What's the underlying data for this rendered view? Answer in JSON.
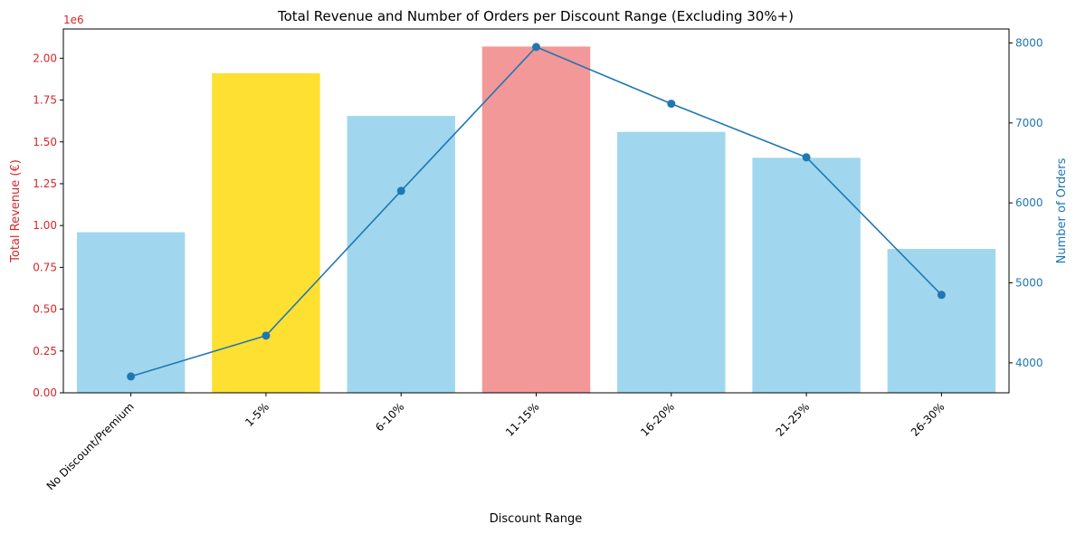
{
  "chart_data": {
    "type": "bar",
    "title": "Total Revenue and Number of Orders per Discount Range (Excluding 30%+)",
    "xlabel": "Discount Range",
    "ylabel": "Total Revenue (€)",
    "y2label": "Number of Orders",
    "y_offset_label": "1e6",
    "categories": [
      "No Discount/Premium",
      "1-5%",
      "6-10%",
      "11-15%",
      "16-20%",
      "21-25%",
      "26-30%"
    ],
    "bar_series": {
      "values": [
        960000,
        1910000,
        1655000,
        2070000,
        1560000,
        1405000,
        860000
      ],
      "colors": [
        "#a0d7ee",
        "#fde031",
        "#a0d7ee",
        "#f29898",
        "#a0d7ee",
        "#a0d7ee",
        "#a0d7ee"
      ]
    },
    "line_series": {
      "values": [
        3830,
        4340,
        6150,
        7950,
        7240,
        6570,
        4850
      ],
      "color": "#1f77b4"
    },
    "y_ticks": [
      0,
      0.25,
      0.5,
      0.75,
      1.0,
      1.25,
      1.5,
      1.75,
      2.0
    ],
    "y_tick_labels": [
      "0.00",
      "0.25",
      "0.50",
      "0.75",
      "1.00",
      "1.25",
      "1.50",
      "1.75",
      "2.00"
    ],
    "y2_ticks": [
      4000,
      5000,
      6000,
      7000,
      8000
    ],
    "y2_tick_labels": [
      "4000",
      "5000",
      "6000",
      "7000",
      "8000"
    ],
    "ylim": [
      0,
      2.175
    ],
    "y2lim": [
      3625,
      8175
    ],
    "left_axis_color": "#d62728",
    "right_axis_color": "#1f77b4",
    "grid": false
  }
}
